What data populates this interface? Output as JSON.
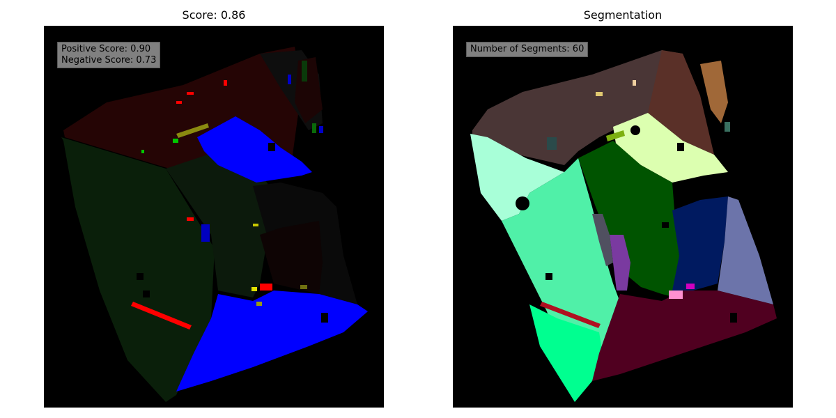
{
  "panels": {
    "left": {
      "title": "Score: 0.86",
      "positive_score": "Positive Score: 0.90",
      "negative_score": "Negative Score: 0.73"
    },
    "right": {
      "title": "Segmentation",
      "segments_label": "Number of Segments: 60"
    }
  },
  "colors": {
    "background": "#000000",
    "positive": "#0000ff",
    "negative": "#ff0000",
    "dark_green": "#0a1f0a",
    "dark_red": "#250505"
  }
}
